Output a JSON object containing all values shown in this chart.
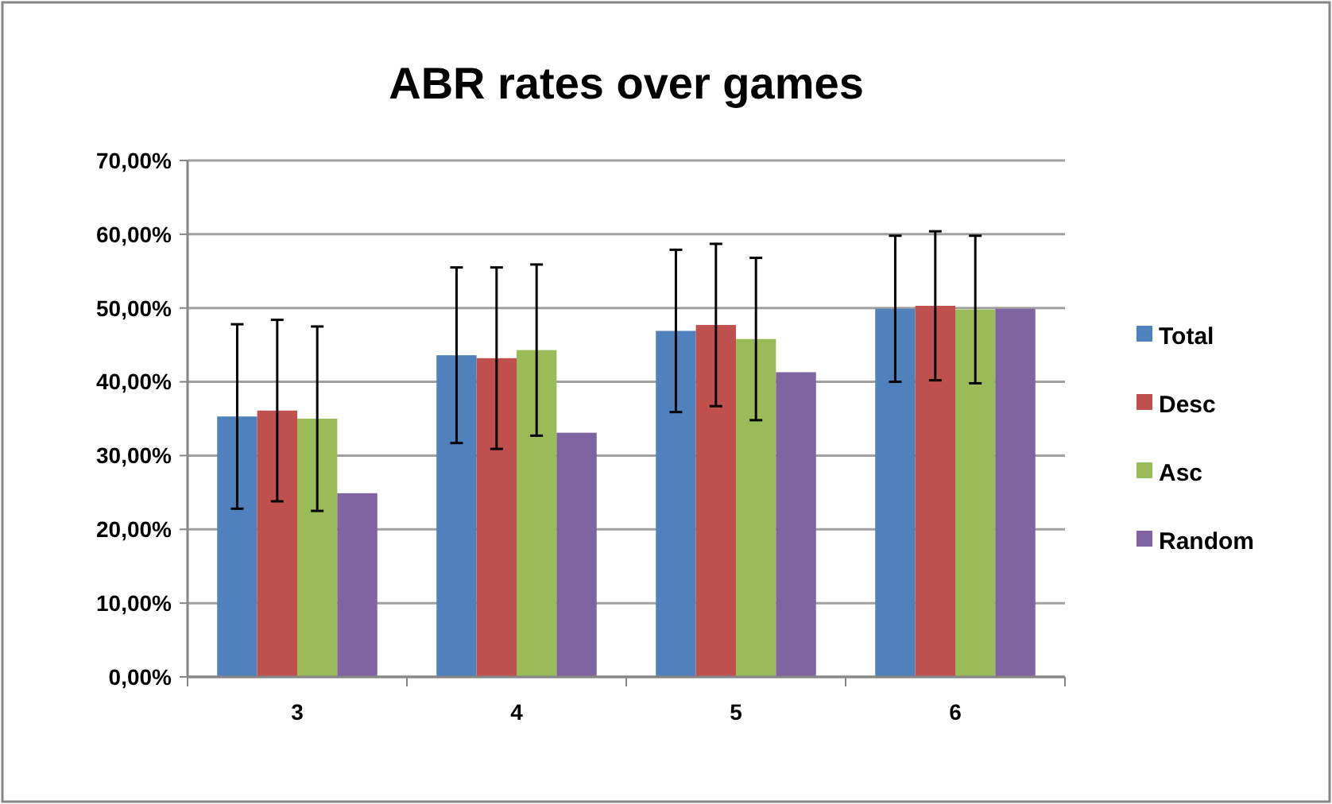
{
  "chart_data": {
    "type": "bar",
    "title": "ABR rates over games",
    "categories": [
      "3",
      "4",
      "5",
      "6"
    ],
    "series": [
      {
        "name": "Total",
        "color": "#4f81bd",
        "values": [
          35.3,
          43.6,
          46.9,
          49.9
        ],
        "errors": [
          12.5,
          11.9,
          11,
          9.9
        ]
      },
      {
        "name": "Desc",
        "color": "#c0504d",
        "values": [
          36.1,
          43.2,
          47.7,
          50.3
        ],
        "errors": [
          12.3,
          12.3,
          11,
          10.1
        ]
      },
      {
        "name": "Asc",
        "color": "#9bbb59",
        "values": [
          35,
          44.3,
          45.8,
          49.8
        ],
        "errors": [
          12.5,
          11.6,
          11,
          10
        ]
      },
      {
        "name": "Random",
        "color": "#8064a2",
        "values": [
          24.9,
          33.1,
          41.3,
          49.9
        ]
      }
    ],
    "ylim": [
      0,
      70
    ],
    "yticks": [
      {
        "value": 0,
        "label": "0,00%"
      },
      {
        "value": 10,
        "label": "10,00%"
      },
      {
        "value": 20,
        "label": "20,00%"
      },
      {
        "value": 30,
        "label": "30,00%"
      },
      {
        "value": 40,
        "label": "40,00%"
      },
      {
        "value": 50,
        "label": "50,00%"
      },
      {
        "value": 60,
        "label": "60,00%"
      },
      {
        "value": 70,
        "label": "70,00%"
      }
    ],
    "grid": "y",
    "legend": "right"
  }
}
